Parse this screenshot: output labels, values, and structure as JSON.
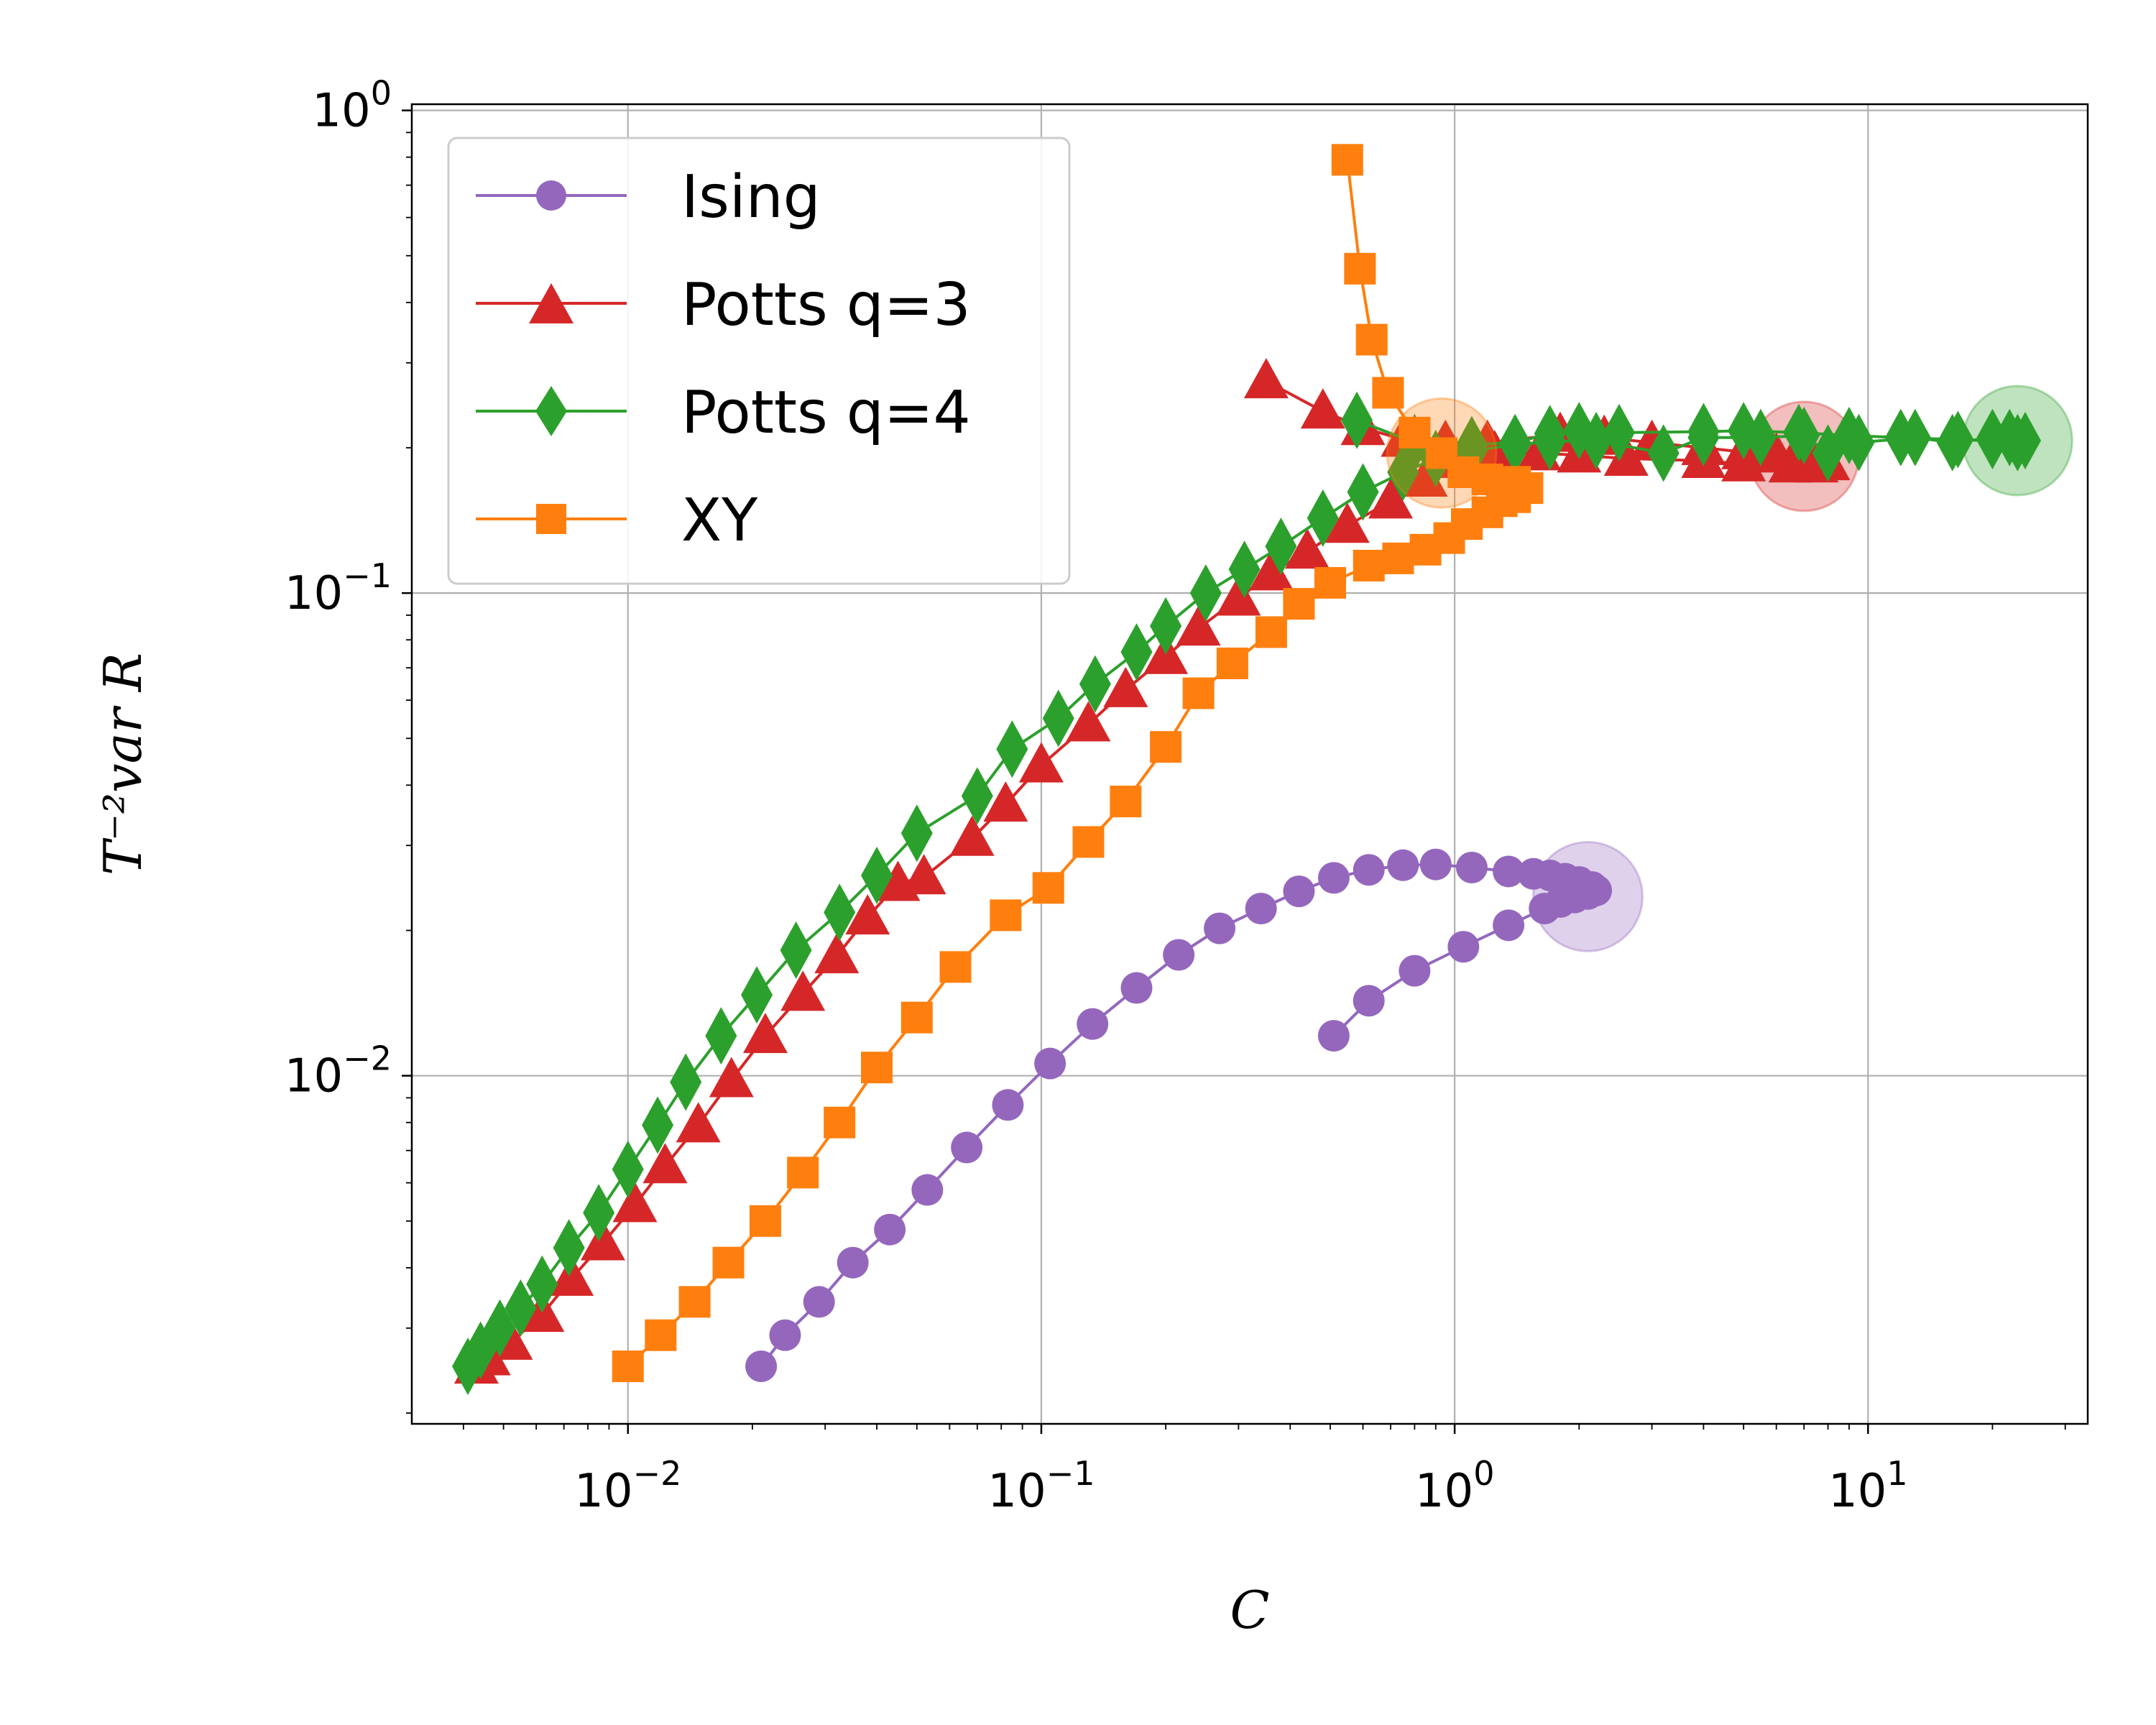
{
  "chart_data": {
    "type": "scatter",
    "xlabel": "C",
    "ylabel": "T⁻²var R",
    "xscale": "log",
    "yscale": "log",
    "xlim": [
      0.003,
      34
    ],
    "ylim": [
      0.0019,
      1.03
    ],
    "grid": true,
    "legend_position": "top-left",
    "x_ticks": [
      {
        "value": 0.01,
        "base": "10",
        "exp": "−2"
      },
      {
        "value": 0.1,
        "base": "10",
        "exp": "−1"
      },
      {
        "value": 1,
        "base": "10",
        "exp": "0"
      },
      {
        "value": 10,
        "base": "10",
        "exp": "1"
      }
    ],
    "y_ticks": [
      {
        "value": 0.01,
        "base": "10",
        "exp": "−2"
      },
      {
        "value": 0.1,
        "base": "10",
        "exp": "−1"
      },
      {
        "value": 1,
        "base": "10",
        "exp": "0"
      }
    ],
    "series": [
      {
        "name": "Ising",
        "color": "#9467bd",
        "marker": "circle",
        "highlight": {
          "x": 2.1,
          "y": 0.0235
        },
        "points": [
          [
            0.021,
            0.0025
          ],
          [
            0.024,
            0.0029
          ],
          [
            0.029,
            0.0034
          ],
          [
            0.035,
            0.0041
          ],
          [
            0.043,
            0.0048
          ],
          [
            0.053,
            0.0058
          ],
          [
            0.066,
            0.0071
          ],
          [
            0.083,
            0.0087
          ],
          [
            0.105,
            0.0106
          ],
          [
            0.133,
            0.0128
          ],
          [
            0.17,
            0.0152
          ],
          [
            0.215,
            0.0178
          ],
          [
            0.27,
            0.0202
          ],
          [
            0.34,
            0.0222
          ],
          [
            0.42,
            0.0241
          ],
          [
            0.51,
            0.0257
          ],
          [
            0.62,
            0.0267
          ],
          [
            0.75,
            0.0273
          ],
          [
            0.9,
            0.0274
          ],
          [
            1.1,
            0.027
          ],
          [
            1.35,
            0.0265
          ],
          [
            1.55,
            0.0262
          ],
          [
            1.7,
            0.026
          ],
          [
            1.85,
            0.0256
          ],
          [
            2.0,
            0.0252
          ],
          [
            2.15,
            0.0246
          ],
          [
            2.2,
            0.0242
          ],
          [
            2.1,
            0.0238
          ],
          [
            1.95,
            0.0234
          ],
          [
            1.8,
            0.0229
          ],
          [
            1.65,
            0.0222
          ],
          [
            1.35,
            0.0205
          ],
          [
            1.05,
            0.0185
          ],
          [
            0.8,
            0.0165
          ],
          [
            0.62,
            0.0143
          ],
          [
            0.51,
            0.0121
          ]
        ]
      },
      {
        "name": "Potts q=3",
        "color": "#d62728",
        "marker": "triangle",
        "highlight": {
          "x": 7.0,
          "y": 0.192
        },
        "points": [
          [
            0.0043,
            0.0025
          ],
          [
            0.0046,
            0.0026
          ],
          [
            0.0052,
            0.0028
          ],
          [
            0.0062,
            0.0032
          ],
          [
            0.0073,
            0.0038
          ],
          [
            0.0087,
            0.0045
          ],
          [
            0.0104,
            0.0054
          ],
          [
            0.0123,
            0.0065
          ],
          [
            0.0148,
            0.0079
          ],
          [
            0.0178,
            0.0098
          ],
          [
            0.0215,
            0.0121
          ],
          [
            0.0265,
            0.0148
          ],
          [
            0.032,
            0.0177
          ],
          [
            0.038,
            0.0213
          ],
          [
            0.045,
            0.025
          ],
          [
            0.052,
            0.0258
          ],
          [
            0.068,
            0.031
          ],
          [
            0.082,
            0.0365
          ],
          [
            0.1,
            0.044
          ],
          [
            0.13,
            0.0535
          ],
          [
            0.16,
            0.063
          ],
          [
            0.2,
            0.0738
          ],
          [
            0.24,
            0.0845
          ],
          [
            0.3,
            0.0975
          ],
          [
            0.36,
            0.11
          ],
          [
            0.44,
            0.122
          ],
          [
            0.55,
            0.138
          ],
          [
            0.7,
            0.155
          ],
          [
            0.85,
            0.172
          ],
          [
            1.0,
            0.188
          ],
          [
            1.25,
            0.195
          ],
          [
            1.6,
            0.195
          ],
          [
            2.0,
            0.193
          ],
          [
            2.6,
            0.19
          ],
          [
            4.0,
            0.188
          ],
          [
            5.0,
            0.185
          ],
          [
            6.5,
            0.184
          ],
          [
            7.5,
            0.184
          ],
          [
            8.0,
            0.186
          ],
          [
            7.0,
            0.19
          ],
          [
            6.0,
            0.193
          ],
          [
            5.0,
            0.196
          ],
          [
            4.0,
            0.2
          ],
          [
            3.0,
            0.205
          ],
          [
            2.3,
            0.21
          ],
          [
            1.8,
            0.213
          ],
          [
            1.2,
            0.205
          ],
          [
            0.95,
            0.205
          ],
          [
            0.75,
            0.208
          ],
          [
            0.6,
            0.22
          ],
          [
            0.48,
            0.238
          ],
          [
            0.35,
            0.275
          ]
        ]
      },
      {
        "name": "Potts q=4",
        "color": "#2ca02c",
        "marker": "diamond",
        "highlight": {
          "x": 23.0,
          "y": 0.207
        },
        "points": [
          [
            0.0041,
            0.0025
          ],
          [
            0.0044,
            0.0027
          ],
          [
            0.0049,
            0.003
          ],
          [
            0.0055,
            0.0033
          ],
          [
            0.0062,
            0.0037
          ],
          [
            0.0072,
            0.0044
          ],
          [
            0.0085,
            0.0052
          ],
          [
            0.01,
            0.0064
          ],
          [
            0.0118,
            0.0079
          ],
          [
            0.0138,
            0.0097
          ],
          [
            0.0168,
            0.0121
          ],
          [
            0.0205,
            0.0147
          ],
          [
            0.0255,
            0.0182
          ],
          [
            0.0325,
            0.0218
          ],
          [
            0.04,
            0.026
          ],
          [
            0.05,
            0.0318
          ],
          [
            0.07,
            0.038
          ],
          [
            0.085,
            0.0475
          ],
          [
            0.11,
            0.055
          ],
          [
            0.135,
            0.0648
          ],
          [
            0.17,
            0.0755
          ],
          [
            0.2,
            0.0855
          ],
          [
            0.25,
            0.1
          ],
          [
            0.31,
            0.112
          ],
          [
            0.38,
            0.125
          ],
          [
            0.48,
            0.143
          ],
          [
            0.6,
            0.162
          ],
          [
            0.75,
            0.178
          ],
          [
            0.9,
            0.19
          ],
          [
            1.1,
            0.197
          ],
          [
            1.4,
            0.203
          ],
          [
            1.7,
            0.206
          ],
          [
            2.2,
            0.207
          ],
          [
            3.2,
            0.195
          ],
          [
            4.0,
            0.21
          ],
          [
            5.5,
            0.21
          ],
          [
            7.0,
            0.212
          ],
          [
            8.0,
            0.195
          ],
          [
            9.5,
            0.205
          ],
          [
            13.0,
            0.21
          ],
          [
            16.0,
            0.205
          ],
          [
            20.0,
            0.21
          ],
          [
            22.0,
            0.21
          ],
          [
            24.0,
            0.207
          ],
          [
            23.0,
            0.205
          ],
          [
            20.0,
            0.207
          ],
          [
            16.5,
            0.208
          ],
          [
            12.0,
            0.21
          ],
          [
            9.0,
            0.212
          ],
          [
            6.8,
            0.215
          ],
          [
            5.0,
            0.217
          ],
          [
            4.0,
            0.216
          ],
          [
            2.5,
            0.215
          ],
          [
            2.0,
            0.217
          ],
          [
            1.7,
            0.214
          ],
          [
            1.4,
            0.205
          ],
          [
            1.1,
            0.203
          ],
          [
            0.8,
            0.205
          ],
          [
            0.58,
            0.228
          ]
        ]
      },
      {
        "name": "XY",
        "color": "#ff7f0e",
        "marker": "square",
        "highlight": {
          "x": 0.93,
          "y": 0.195
        },
        "points": [
          [
            0.01,
            0.0025
          ],
          [
            0.012,
            0.0029
          ],
          [
            0.0145,
            0.0034
          ],
          [
            0.0175,
            0.0041
          ],
          [
            0.0215,
            0.005
          ],
          [
            0.0265,
            0.0063
          ],
          [
            0.0325,
            0.008
          ],
          [
            0.04,
            0.0104
          ],
          [
            0.05,
            0.0132
          ],
          [
            0.062,
            0.0168
          ],
          [
            0.082,
            0.0215
          ],
          [
            0.104,
            0.0245
          ],
          [
            0.13,
            0.0305
          ],
          [
            0.16,
            0.037
          ],
          [
            0.2,
            0.048
          ],
          [
            0.24,
            0.062
          ],
          [
            0.29,
            0.0715
          ],
          [
            0.36,
            0.083
          ],
          [
            0.42,
            0.095
          ],
          [
            0.5,
            0.105
          ],
          [
            0.62,
            0.114
          ],
          [
            0.73,
            0.118
          ],
          [
            0.85,
            0.123
          ],
          [
            0.97,
            0.13
          ],
          [
            1.07,
            0.139
          ],
          [
            1.2,
            0.147
          ],
          [
            1.3,
            0.155
          ],
          [
            1.4,
            0.158
          ],
          [
            1.5,
            0.165
          ],
          [
            1.4,
            0.17
          ],
          [
            1.2,
            0.172
          ],
          [
            1.05,
            0.178
          ],
          [
            0.93,
            0.195
          ],
          [
            0.8,
            0.215
          ],
          [
            0.69,
            0.26
          ],
          [
            0.63,
            0.335
          ],
          [
            0.59,
            0.47
          ],
          [
            0.55,
            0.79
          ]
        ]
      }
    ]
  }
}
